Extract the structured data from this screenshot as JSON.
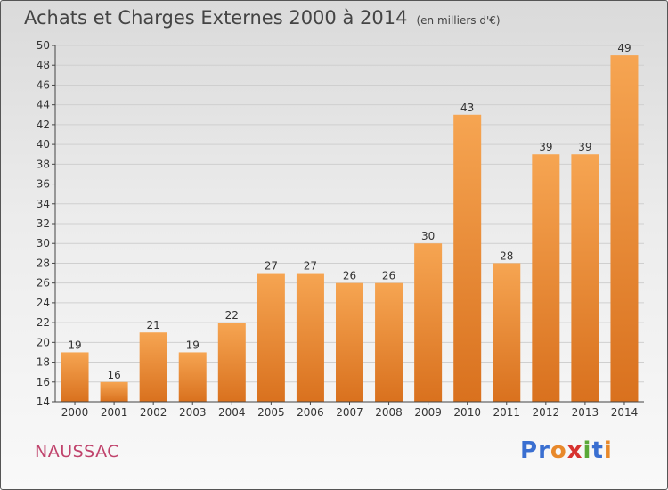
{
  "header": {
    "title": "Achats et Charges Externes 2000 à 2014",
    "subtitle": "(en milliers d'€)"
  },
  "footer": {
    "commune": "NAUSSAC",
    "brand": "Proxiti",
    "brand_letter_colors": [
      "#3a6fd1",
      "#3a6fd1",
      "#e8892b",
      "#d7322f",
      "#5aa838",
      "#3a6fd1",
      "#e8892b"
    ]
  },
  "colors": {
    "bar_top": "#f6a552",
    "bar_bottom": "#d9711e",
    "grid": "#cfcfcf",
    "axis": "#444444",
    "text": "#333333"
  },
  "chart_data": {
    "type": "bar",
    "categories": [
      "2000",
      "2001",
      "2002",
      "2003",
      "2004",
      "2005",
      "2006",
      "2007",
      "2008",
      "2009",
      "2010",
      "2011",
      "2012",
      "2013",
      "2014"
    ],
    "values": [
      19,
      16,
      21,
      19,
      22,
      27,
      27,
      26,
      26,
      30,
      43,
      28,
      39,
      39,
      49
    ],
    "ylim": [
      14,
      50
    ],
    "yticks": [
      14,
      16,
      18,
      20,
      22,
      24,
      26,
      28,
      30,
      32,
      34,
      36,
      38,
      40,
      42,
      44,
      46,
      48,
      50
    ],
    "grid": true,
    "title": "Achats et Charges Externes 2000 à 2014",
    "subtitle": "(en milliers d'€)"
  }
}
